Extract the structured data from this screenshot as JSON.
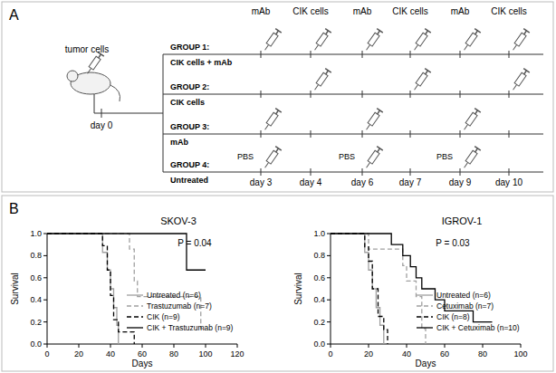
{
  "panel_a": {
    "label": "A",
    "tumor_label": "tumor cells",
    "start_day": "day 0",
    "schedule_labels": [
      "mAb",
      "CIK cells",
      "mAb",
      "CIK cells",
      "mAb",
      "CIK cells"
    ],
    "days": [
      "day 3",
      "day 4",
      "day 6",
      "day 7",
      "day 9",
      "day 10"
    ],
    "groups": [
      {
        "title": "GROUP 1:",
        "subtitle": "CIK cells + mAb",
        "injection_days": [
          0,
          1,
          2,
          3,
          4,
          5
        ]
      },
      {
        "title": "GROUP 2:",
        "subtitle": "CIK cells",
        "injection_days": [
          1,
          3,
          5
        ]
      },
      {
        "title": "GROUP 3:",
        "subtitle": "mAb",
        "injection_days": [
          0,
          2,
          4
        ]
      },
      {
        "title": "GROUP 4:",
        "subtitle": "Untreated",
        "injection_days": [
          0,
          2,
          4
        ],
        "injection_label": "PBS"
      }
    ]
  },
  "panel_b": {
    "label": "B"
  },
  "chart_data": [
    {
      "type": "step",
      "title": "SKOV-3",
      "x_label": "Days",
      "y_label": "Survival",
      "annotations": [
        "P = 0.04"
      ],
      "legend": "lower right",
      "xlim": [
        0,
        120
      ],
      "xticks": [
        0,
        20,
        40,
        60,
        80,
        100,
        120
      ],
      "ylim": [
        0,
        1
      ],
      "yticks": [
        {
          "value": 0,
          "label": "0.0"
        },
        {
          "value": 0.2,
          "label": "0.2"
        },
        {
          "value": 0.4,
          "label": "0.4"
        },
        {
          "value": 0.6,
          "label": "0.6"
        },
        {
          "value": 0.8,
          "label": "0.8"
        },
        {
          "value": 1,
          "label": "1.0"
        }
      ],
      "series": [
        {
          "name": "Untreated (n=6)",
          "color": "#a0a0a0",
          "line_style": "solid",
          "x": [
            0,
            35,
            38,
            40,
            42,
            44,
            45
          ],
          "values": [
            1,
            0.83,
            0.67,
            0.5,
            0.33,
            0.17,
            0
          ]
        },
        {
          "name": "Trastuzumab (n=7)",
          "color": "#a0a0a0",
          "line_style": "dashed",
          "x": [
            0,
            52,
            55,
            57,
            97,
            100
          ],
          "values": [
            1,
            0.86,
            0.57,
            0.43,
            0.14,
            0.14
          ]
        },
        {
          "name": "CIK (n=9)",
          "color": "#000000",
          "line_style": "dashed",
          "x": [
            0,
            35,
            38,
            40,
            42,
            45,
            55
          ],
          "values": [
            1,
            0.89,
            0.67,
            0.44,
            0.22,
            0.11,
            0
          ]
        },
        {
          "name": "CIK + Trastuzumab (n=9)",
          "color": "#000000",
          "line_style": "solid",
          "x": [
            0,
            88,
            100
          ],
          "values": [
            1,
            0.67,
            0.67
          ]
        }
      ]
    },
    {
      "type": "step",
      "title": "IGROV-1",
      "x_label": "Days",
      "y_label": "Survival",
      "annotations": [
        "P = 0.03"
      ],
      "legend": "lower right",
      "xlim": [
        0,
        100
      ],
      "xticks": [
        0,
        20,
        40,
        60,
        80,
        100
      ],
      "ylim": [
        0,
        1
      ],
      "yticks": [
        {
          "value": 0,
          "label": "0.0"
        },
        {
          "value": 0.2,
          "label": "0.2"
        },
        {
          "value": 0.4,
          "label": "0.4"
        },
        {
          "value": 0.6,
          "label": "0.6"
        },
        {
          "value": 0.8,
          "label": "0.8"
        },
        {
          "value": 1,
          "label": "1.0"
        }
      ],
      "series": [
        {
          "name": "Untreated (n=6)",
          "color": "#a0a0a0",
          "line_style": "solid",
          "x": [
            0,
            18,
            20,
            22,
            24,
            26,
            28
          ],
          "values": [
            1,
            0.83,
            0.67,
            0.5,
            0.33,
            0.17,
            0
          ]
        },
        {
          "name": "Cetuximab (n=7)",
          "color": "#a0a0a0",
          "line_style": "dashed",
          "x": [
            0,
            20,
            38,
            40,
            45,
            48,
            50
          ],
          "values": [
            1,
            0.86,
            0.71,
            0.57,
            0.43,
            0.14,
            0
          ]
        },
        {
          "name": "CIK (n=8)",
          "color": "#000000",
          "line_style": "dashed",
          "x": [
            0,
            18,
            20,
            22,
            25,
            28,
            30
          ],
          "values": [
            1,
            0.88,
            0.75,
            0.5,
            0.25,
            0.13,
            0
          ]
        },
        {
          "name": "CIK + Cetuximab (n=10)",
          "color": "#000000",
          "line_style": "solid",
          "x": [
            0,
            32,
            38,
            42,
            45,
            48,
            55,
            60,
            75,
            85
          ],
          "values": [
            1,
            0.9,
            0.8,
            0.7,
            0.6,
            0.5,
            0.4,
            0.3,
            0.2,
            0.2
          ]
        }
      ]
    }
  ]
}
